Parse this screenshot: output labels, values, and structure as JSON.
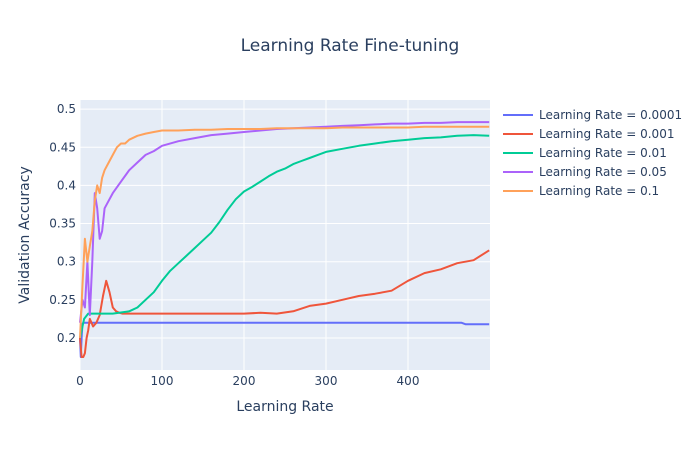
{
  "chart_data": {
    "type": "line",
    "title": "Learning Rate Fine-tuning",
    "xlabel": "Learning Rate",
    "ylabel": "Validation Accuracy",
    "xlim": [
      0,
      500
    ],
    "ylim": [
      0.158,
      0.512
    ],
    "x_ticks": [
      0,
      100,
      200,
      300,
      400
    ],
    "y_ticks": [
      0.2,
      0.25,
      0.3,
      0.35,
      0.4,
      0.45,
      0.5
    ],
    "x_tick_labels": [
      "0",
      "100",
      "200",
      "300",
      "400"
    ],
    "y_tick_labels": [
      "0.2",
      "0.25",
      "0.3",
      "0.35",
      "0.4",
      "0.45",
      "0.5"
    ],
    "grid": true,
    "legend_position": "right",
    "series": [
      {
        "name": "Learning Rate = 0.0001",
        "color": "#636efa",
        "x": [
          0,
          1,
          2,
          3,
          5,
          10,
          50,
          100,
          200,
          300,
          400,
          465,
          470,
          499
        ],
        "y": [
          0.2,
          0.175,
          0.2,
          0.219,
          0.22,
          0.22,
          0.22,
          0.22,
          0.22,
          0.22,
          0.22,
          0.22,
          0.218,
          0.218
        ]
      },
      {
        "name": "Learning Rate = 0.001",
        "color": "#ef553b",
        "x": [
          0,
          2,
          4,
          6,
          8,
          10,
          12,
          14,
          16,
          20,
          24,
          28,
          32,
          36,
          40,
          44,
          48,
          52,
          56,
          60,
          100,
          150,
          200,
          220,
          240,
          260,
          280,
          300,
          320,
          340,
          360,
          380,
          400,
          420,
          440,
          460,
          480,
          499
        ],
        "y": [
          0.2,
          0.175,
          0.175,
          0.18,
          0.2,
          0.21,
          0.225,
          0.22,
          0.215,
          0.22,
          0.23,
          0.255,
          0.275,
          0.26,
          0.24,
          0.235,
          0.233,
          0.232,
          0.232,
          0.232,
          0.232,
          0.232,
          0.232,
          0.233,
          0.232,
          0.235,
          0.242,
          0.245,
          0.25,
          0.255,
          0.258,
          0.262,
          0.275,
          0.285,
          0.29,
          0.298,
          0.302,
          0.315
        ]
      },
      {
        "name": "Learning Rate = 0.01",
        "color": "#00cc96",
        "x": [
          0,
          5,
          10,
          20,
          40,
          60,
          70,
          80,
          90,
          100,
          110,
          120,
          130,
          140,
          150,
          160,
          170,
          180,
          190,
          200,
          210,
          220,
          230,
          240,
          250,
          260,
          270,
          280,
          290,
          300,
          320,
          340,
          360,
          380,
          400,
          420,
          440,
          460,
          480,
          499
        ],
        "y": [
          0.2,
          0.225,
          0.232,
          0.232,
          0.232,
          0.235,
          0.24,
          0.25,
          0.26,
          0.275,
          0.288,
          0.298,
          0.308,
          0.318,
          0.328,
          0.338,
          0.352,
          0.368,
          0.382,
          0.392,
          0.398,
          0.405,
          0.412,
          0.418,
          0.422,
          0.428,
          0.432,
          0.436,
          0.44,
          0.444,
          0.448,
          0.452,
          0.455,
          0.458,
          0.46,
          0.462,
          0.463,
          0.465,
          0.466,
          0.465
        ]
      },
      {
        "name": "Learning Rate = 0.05",
        "color": "#ab63fa",
        "x": [
          0,
          3,
          6,
          9,
          12,
          15,
          18,
          21,
          24,
          27,
          30,
          35,
          40,
          50,
          60,
          70,
          80,
          90,
          100,
          120,
          140,
          160,
          180,
          200,
          220,
          240,
          260,
          280,
          300,
          320,
          340,
          360,
          380,
          400,
          420,
          440,
          460,
          480,
          499
        ],
        "y": [
          0.22,
          0.25,
          0.24,
          0.3,
          0.23,
          0.3,
          0.39,
          0.37,
          0.33,
          0.34,
          0.37,
          0.38,
          0.39,
          0.405,
          0.42,
          0.43,
          0.44,
          0.445,
          0.452,
          0.458,
          0.462,
          0.466,
          0.468,
          0.47,
          0.472,
          0.474,
          0.475,
          0.476,
          0.477,
          0.478,
          0.479,
          0.48,
          0.481,
          0.481,
          0.482,
          0.482,
          0.483,
          0.483,
          0.483
        ]
      },
      {
        "name": "Learning Rate = 0.1",
        "color": "#ffa15a",
        "x": [
          0,
          3,
          6,
          9,
          12,
          15,
          18,
          21,
          24,
          27,
          30,
          35,
          40,
          45,
          50,
          55,
          60,
          70,
          80,
          90,
          100,
          120,
          140,
          160,
          180,
          200,
          220,
          240,
          260,
          280,
          300,
          320,
          340,
          360,
          380,
          400,
          420,
          440,
          460,
          480,
          499
        ],
        "y": [
          0.2,
          0.27,
          0.33,
          0.3,
          0.32,
          0.34,
          0.38,
          0.4,
          0.39,
          0.41,
          0.42,
          0.43,
          0.44,
          0.45,
          0.455,
          0.455,
          0.46,
          0.465,
          0.468,
          0.47,
          0.472,
          0.472,
          0.473,
          0.473,
          0.474,
          0.474,
          0.474,
          0.475,
          0.475,
          0.475,
          0.475,
          0.476,
          0.476,
          0.476,
          0.476,
          0.476,
          0.477,
          0.477,
          0.477,
          0.477,
          0.477
        ]
      }
    ]
  }
}
